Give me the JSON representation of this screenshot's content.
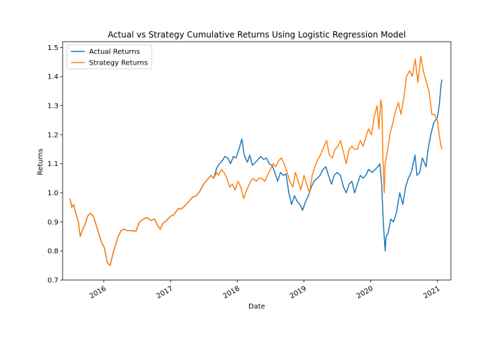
{
  "chart_data": {
    "type": "line",
    "title": "Actual vs Strategy Cumulative Returns Using Logistic Regression Model",
    "xlabel": "Date",
    "ylabel": "Returns",
    "x_range": [
      "2015-05-21",
      "2021-03-15"
    ],
    "ylim": [
      0.7,
      1.52
    ],
    "y_ticks": [
      0.7,
      0.8,
      0.9,
      1.0,
      1.1,
      1.2,
      1.3,
      1.4,
      1.5
    ],
    "x_ticks": [
      {
        "date": "2016-01-01",
        "label": "2016"
      },
      {
        "date": "2017-01-01",
        "label": "2017"
      },
      {
        "date": "2018-01-01",
        "label": "2018"
      },
      {
        "date": "2019-01-01",
        "label": "2019"
      },
      {
        "date": "2020-01-01",
        "label": "2020"
      },
      {
        "date": "2021-01-01",
        "label": "2021"
      }
    ],
    "legend_position": "top-left",
    "grid": false,
    "series": [
      {
        "name": "Actual Returns",
        "color": "#1f77b4",
        "points": [
          [
            "2015-07-01",
            0.98
          ],
          [
            "2015-07-10",
            0.95
          ],
          [
            "2015-07-20",
            0.96
          ],
          [
            "2015-08-01",
            0.93
          ],
          [
            "2015-08-15",
            0.9
          ],
          [
            "2015-08-25",
            0.85
          ],
          [
            "2015-09-05",
            0.87
          ],
          [
            "2015-09-20",
            0.89
          ],
          [
            "2015-10-05",
            0.92
          ],
          [
            "2015-10-20",
            0.93
          ],
          [
            "2015-11-05",
            0.92
          ],
          [
            "2015-11-20",
            0.89
          ],
          [
            "2015-12-05",
            0.86
          ],
          [
            "2015-12-20",
            0.83
          ],
          [
            "2016-01-05",
            0.81
          ],
          [
            "2016-01-20",
            0.76
          ],
          [
            "2016-02-05",
            0.75
          ],
          [
            "2016-02-20",
            0.79
          ],
          [
            "2016-03-05",
            0.82
          ],
          [
            "2016-03-20",
            0.85
          ],
          [
            "2016-04-05",
            0.87
          ],
          [
            "2016-04-20",
            0.875
          ],
          [
            "2016-05-10",
            0.87
          ],
          [
            "2016-06-01",
            0.87
          ],
          [
            "2016-06-25",
            0.868
          ],
          [
            "2016-07-15",
            0.9
          ],
          [
            "2016-08-05",
            0.91
          ],
          [
            "2016-08-25",
            0.915
          ],
          [
            "2016-09-15",
            0.905
          ],
          [
            "2016-10-05",
            0.91
          ],
          [
            "2016-10-20",
            0.89
          ],
          [
            "2016-11-05",
            0.875
          ],
          [
            "2016-11-20",
            0.895
          ],
          [
            "2016-12-10",
            0.905
          ],
          [
            "2017-01-01",
            0.92
          ],
          [
            "2017-01-20",
            0.925
          ],
          [
            "2017-02-10",
            0.945
          ],
          [
            "2017-03-01",
            0.945
          ],
          [
            "2017-03-20",
            0.955
          ],
          [
            "2017-04-10",
            0.97
          ],
          [
            "2017-05-01",
            0.985
          ],
          [
            "2017-05-20",
            0.99
          ],
          [
            "2017-06-10",
            1.005
          ],
          [
            "2017-07-01",
            1.03
          ],
          [
            "2017-07-20",
            1.045
          ],
          [
            "2017-08-10",
            1.06
          ],
          [
            "2017-08-25",
            1.05
          ],
          [
            "2017-09-10",
            1.085
          ],
          [
            "2017-09-25",
            1.1
          ],
          [
            "2017-10-10",
            1.11
          ],
          [
            "2017-10-25",
            1.125
          ],
          [
            "2017-11-10",
            1.12
          ],
          [
            "2017-11-25",
            1.1
          ],
          [
            "2017-12-10",
            1.125
          ],
          [
            "2017-12-25",
            1.12
          ],
          [
            "2018-01-10",
            1.15
          ],
          [
            "2018-01-26",
            1.185
          ],
          [
            "2018-02-08",
            1.13
          ],
          [
            "2018-02-25",
            1.105
          ],
          [
            "2018-03-10",
            1.13
          ],
          [
            "2018-03-25",
            1.095
          ],
          [
            "2018-04-10",
            1.105
          ],
          [
            "2018-04-25",
            1.115
          ],
          [
            "2018-05-10",
            1.125
          ],
          [
            "2018-05-25",
            1.115
          ],
          [
            "2018-06-10",
            1.12
          ],
          [
            "2018-06-25",
            1.1
          ],
          [
            "2018-07-10",
            1.095
          ],
          [
            "2018-07-25",
            1.07
          ],
          [
            "2018-08-10",
            1.04
          ],
          [
            "2018-08-25",
            1.07
          ],
          [
            "2018-09-10",
            1.06
          ],
          [
            "2018-09-25",
            1.065
          ],
          [
            "2018-10-10",
            1.0
          ],
          [
            "2018-10-25",
            0.96
          ],
          [
            "2018-11-10",
            0.99
          ],
          [
            "2018-11-25",
            0.97
          ],
          [
            "2018-12-10",
            0.96
          ],
          [
            "2018-12-24",
            0.94
          ],
          [
            "2019-01-10",
            0.97
          ],
          [
            "2019-01-25",
            0.99
          ],
          [
            "2019-02-10",
            1.02
          ],
          [
            "2019-02-25",
            1.04
          ],
          [
            "2019-03-15",
            1.05
          ],
          [
            "2019-03-30",
            1.06
          ],
          [
            "2019-04-15",
            1.08
          ],
          [
            "2019-04-30",
            1.09
          ],
          [
            "2019-05-15",
            1.06
          ],
          [
            "2019-06-01",
            1.03
          ],
          [
            "2019-06-15",
            1.06
          ],
          [
            "2019-07-01",
            1.07
          ],
          [
            "2019-07-20",
            1.06
          ],
          [
            "2019-08-05",
            1.02
          ],
          [
            "2019-08-20",
            1.0
          ],
          [
            "2019-09-05",
            1.03
          ],
          [
            "2019-09-20",
            1.04
          ],
          [
            "2019-10-05",
            1.0
          ],
          [
            "2019-10-20",
            1.03
          ],
          [
            "2019-11-05",
            1.06
          ],
          [
            "2019-11-20",
            1.05
          ],
          [
            "2019-12-05",
            1.06
          ],
          [
            "2019-12-20",
            1.08
          ],
          [
            "2020-01-10",
            1.07
          ],
          [
            "2020-01-25",
            1.08
          ],
          [
            "2020-02-10",
            1.09
          ],
          [
            "2020-02-20",
            1.1
          ],
          [
            "2020-03-01",
            1.03
          ],
          [
            "2020-03-10",
            0.9
          ],
          [
            "2020-03-20",
            0.8
          ],
          [
            "2020-03-25",
            0.85
          ],
          [
            "2020-04-05",
            0.86
          ],
          [
            "2020-04-20",
            0.91
          ],
          [
            "2020-05-05",
            0.9
          ],
          [
            "2020-05-20",
            0.93
          ],
          [
            "2020-06-08",
            1.0
          ],
          [
            "2020-06-25",
            0.96
          ],
          [
            "2020-07-10",
            1.02
          ],
          [
            "2020-07-25",
            1.05
          ],
          [
            "2020-08-10",
            1.07
          ],
          [
            "2020-08-31",
            1.13
          ],
          [
            "2020-09-10",
            1.06
          ],
          [
            "2020-09-25",
            1.07
          ],
          [
            "2020-10-10",
            1.12
          ],
          [
            "2020-10-30",
            1.09
          ],
          [
            "2020-11-10",
            1.15
          ],
          [
            "2020-11-25",
            1.2
          ],
          [
            "2020-12-10",
            1.24
          ],
          [
            "2020-12-31",
            1.26
          ],
          [
            "2021-01-10",
            1.3
          ],
          [
            "2021-01-20",
            1.37
          ],
          [
            "2021-01-25",
            1.39
          ]
        ]
      },
      {
        "name": "Strategy Returns",
        "color": "#ff7f0e",
        "points": [
          [
            "2015-07-01",
            0.98
          ],
          [
            "2015-07-10",
            0.95
          ],
          [
            "2015-07-20",
            0.96
          ],
          [
            "2015-08-01",
            0.93
          ],
          [
            "2015-08-15",
            0.9
          ],
          [
            "2015-08-25",
            0.85
          ],
          [
            "2015-09-05",
            0.87
          ],
          [
            "2015-09-20",
            0.89
          ],
          [
            "2015-10-05",
            0.92
          ],
          [
            "2015-10-20",
            0.93
          ],
          [
            "2015-11-05",
            0.92
          ],
          [
            "2015-11-20",
            0.89
          ],
          [
            "2015-12-05",
            0.86
          ],
          [
            "2015-12-20",
            0.83
          ],
          [
            "2016-01-05",
            0.81
          ],
          [
            "2016-01-20",
            0.76
          ],
          [
            "2016-02-05",
            0.75
          ],
          [
            "2016-02-20",
            0.79
          ],
          [
            "2016-03-05",
            0.82
          ],
          [
            "2016-03-20",
            0.85
          ],
          [
            "2016-04-05",
            0.87
          ],
          [
            "2016-04-20",
            0.875
          ],
          [
            "2016-05-10",
            0.87
          ],
          [
            "2016-06-01",
            0.87
          ],
          [
            "2016-06-25",
            0.868
          ],
          [
            "2016-07-15",
            0.9
          ],
          [
            "2016-08-05",
            0.91
          ],
          [
            "2016-08-25",
            0.915
          ],
          [
            "2016-09-15",
            0.905
          ],
          [
            "2016-10-05",
            0.91
          ],
          [
            "2016-10-20",
            0.89
          ],
          [
            "2016-11-05",
            0.875
          ],
          [
            "2016-11-20",
            0.895
          ],
          [
            "2016-12-10",
            0.905
          ],
          [
            "2017-01-01",
            0.92
          ],
          [
            "2017-01-20",
            0.925
          ],
          [
            "2017-02-10",
            0.945
          ],
          [
            "2017-03-01",
            0.945
          ],
          [
            "2017-03-20",
            0.955
          ],
          [
            "2017-04-10",
            0.97
          ],
          [
            "2017-05-01",
            0.985
          ],
          [
            "2017-05-20",
            0.99
          ],
          [
            "2017-06-10",
            1.005
          ],
          [
            "2017-07-01",
            1.03
          ],
          [
            "2017-07-20",
            1.045
          ],
          [
            "2017-08-10",
            1.06
          ],
          [
            "2017-08-25",
            1.05
          ],
          [
            "2017-09-10",
            1.07
          ],
          [
            "2017-09-20",
            1.06
          ],
          [
            "2017-10-05",
            1.08
          ],
          [
            "2017-10-20",
            1.07
          ],
          [
            "2017-11-05",
            1.05
          ],
          [
            "2017-11-20",
            1.02
          ],
          [
            "2017-12-05",
            1.03
          ],
          [
            "2017-12-20",
            1.01
          ],
          [
            "2018-01-05",
            1.04
          ],
          [
            "2018-01-20",
            1.02
          ],
          [
            "2018-02-05",
            0.98
          ],
          [
            "2018-02-15",
            1.0
          ],
          [
            "2018-03-01",
            1.02
          ],
          [
            "2018-03-15",
            1.04
          ],
          [
            "2018-03-30",
            1.05
          ],
          [
            "2018-04-15",
            1.04
          ],
          [
            "2018-04-30",
            1.05
          ],
          [
            "2018-05-15",
            1.05
          ],
          [
            "2018-06-01",
            1.04
          ],
          [
            "2018-06-15",
            1.06
          ],
          [
            "2018-07-01",
            1.08
          ],
          [
            "2018-07-15",
            1.1
          ],
          [
            "2018-07-30",
            1.09
          ],
          [
            "2018-08-15",
            1.11
          ],
          [
            "2018-08-30",
            1.12
          ],
          [
            "2018-09-15",
            1.1
          ],
          [
            "2018-10-01",
            1.07
          ],
          [
            "2018-10-15",
            1.04
          ],
          [
            "2018-11-01",
            1.02
          ],
          [
            "2018-11-15",
            1.07
          ],
          [
            "2018-12-01",
            1.04
          ],
          [
            "2018-12-15",
            1.01
          ],
          [
            "2019-01-01",
            1.06
          ],
          [
            "2019-01-15",
            1.03
          ],
          [
            "2019-01-31",
            1.0
          ],
          [
            "2019-02-15",
            1.06
          ],
          [
            "2019-03-01",
            1.09
          ],
          [
            "2019-03-15",
            1.11
          ],
          [
            "2019-04-01",
            1.13
          ],
          [
            "2019-04-20",
            1.16
          ],
          [
            "2019-05-05",
            1.18
          ],
          [
            "2019-05-20",
            1.13
          ],
          [
            "2019-06-05",
            1.12
          ],
          [
            "2019-06-20",
            1.15
          ],
          [
            "2019-07-05",
            1.16
          ],
          [
            "2019-07-20",
            1.18
          ],
          [
            "2019-08-05",
            1.14
          ],
          [
            "2019-08-20",
            1.1
          ],
          [
            "2019-09-05",
            1.15
          ],
          [
            "2019-09-20",
            1.16
          ],
          [
            "2019-10-05",
            1.15
          ],
          [
            "2019-10-20",
            1.15
          ],
          [
            "2019-11-05",
            1.18
          ],
          [
            "2019-11-20",
            1.16
          ],
          [
            "2019-12-05",
            1.19
          ],
          [
            "2019-12-20",
            1.22
          ],
          [
            "2020-01-05",
            1.2
          ],
          [
            "2020-01-20",
            1.26
          ],
          [
            "2020-02-05",
            1.3
          ],
          [
            "2020-02-15",
            1.22
          ],
          [
            "2020-02-25",
            1.32
          ],
          [
            "2020-03-02",
            1.3
          ],
          [
            "2020-03-08",
            1.12
          ],
          [
            "2020-03-15",
            1.0
          ],
          [
            "2020-03-20",
            1.1
          ],
          [
            "2020-04-01",
            1.14
          ],
          [
            "2020-04-15",
            1.2
          ],
          [
            "2020-05-01",
            1.24
          ],
          [
            "2020-05-15",
            1.28
          ],
          [
            "2020-06-01",
            1.31
          ],
          [
            "2020-06-15",
            1.27
          ],
          [
            "2020-07-01",
            1.33
          ],
          [
            "2020-07-15",
            1.4
          ],
          [
            "2020-08-01",
            1.42
          ],
          [
            "2020-08-15",
            1.4
          ],
          [
            "2020-09-01",
            1.46
          ],
          [
            "2020-09-15",
            1.38
          ],
          [
            "2020-10-01",
            1.47
          ],
          [
            "2020-10-15",
            1.42
          ],
          [
            "2020-11-01",
            1.38
          ],
          [
            "2020-11-15",
            1.35
          ],
          [
            "2020-12-01",
            1.27
          ],
          [
            "2020-12-15",
            1.27
          ],
          [
            "2020-12-31",
            1.25
          ],
          [
            "2021-01-10",
            1.2
          ],
          [
            "2021-01-20",
            1.16
          ],
          [
            "2021-01-25",
            1.15
          ]
        ]
      }
    ]
  }
}
